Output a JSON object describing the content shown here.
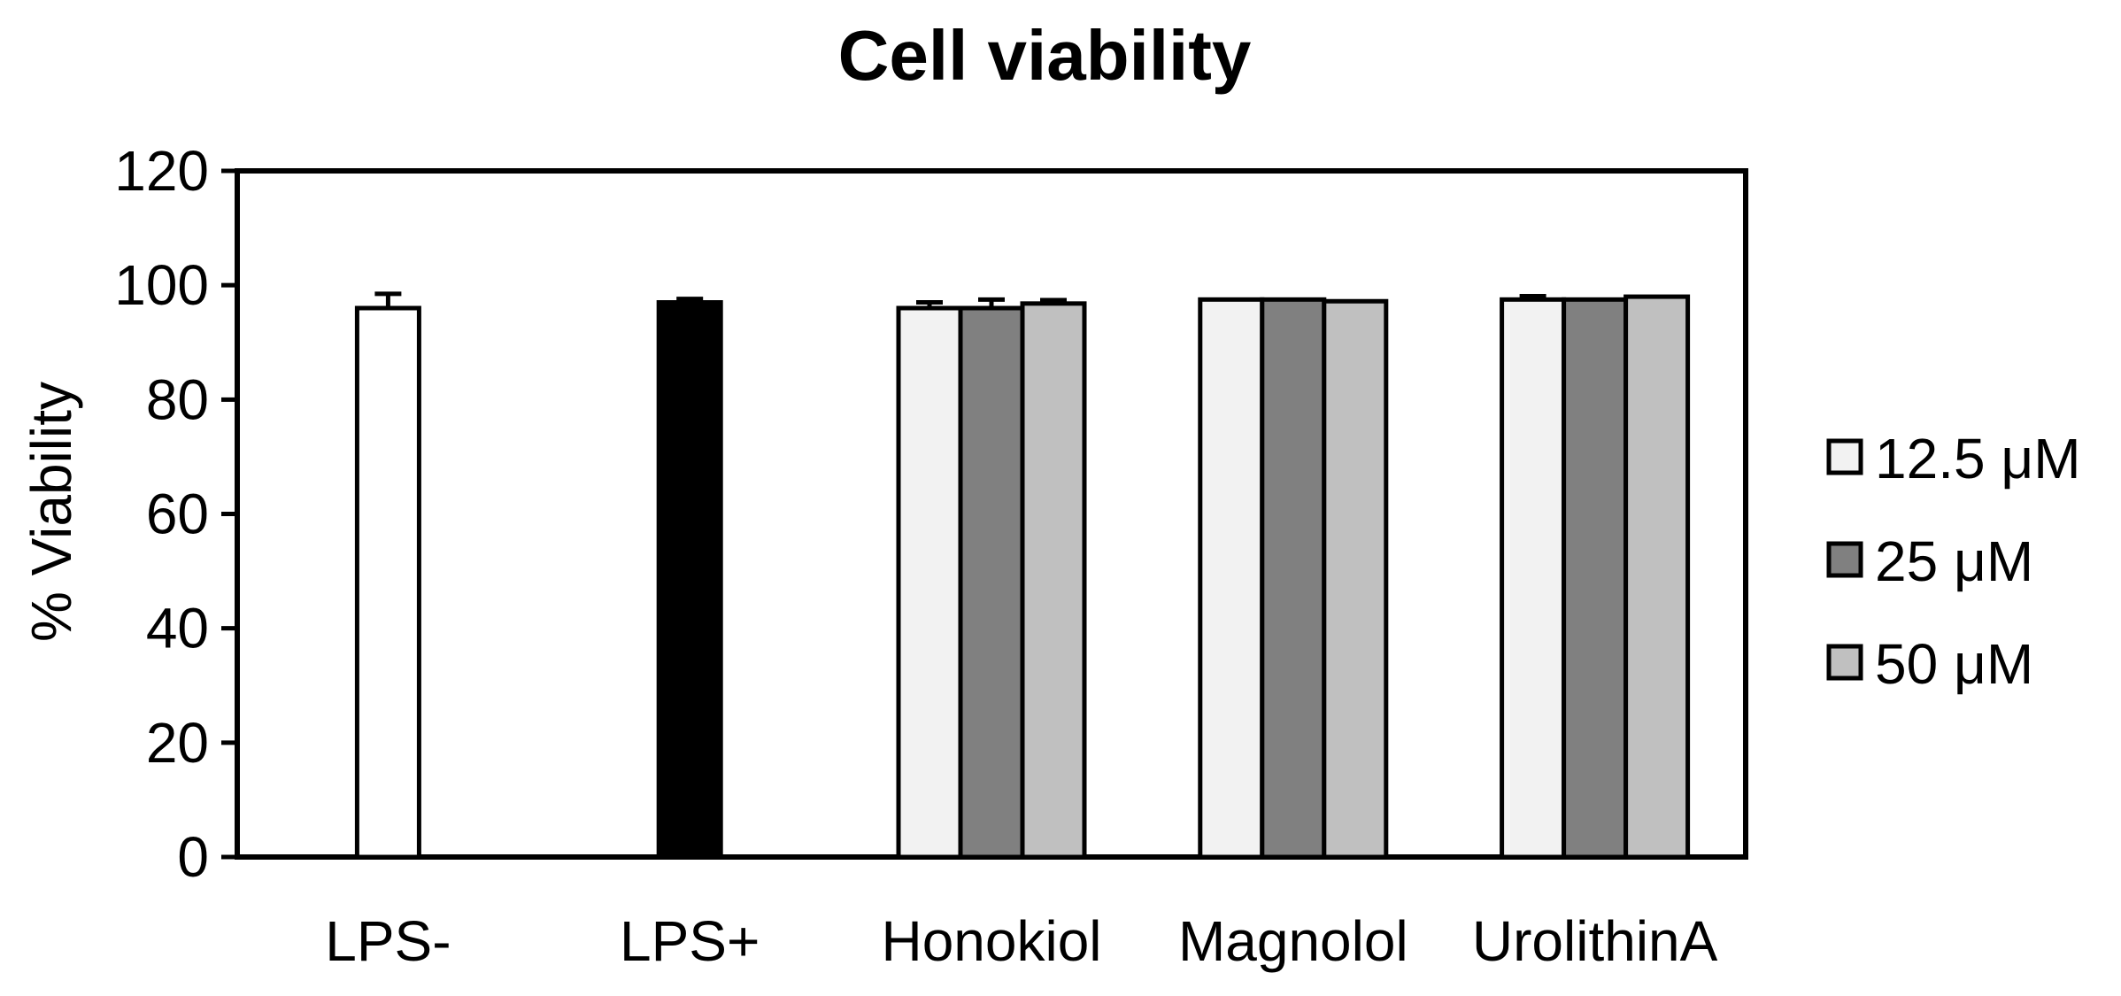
{
  "chart_data": {
    "type": "bar",
    "title": "Cell viability",
    "xlabel": "",
    "ylabel": "% Viability",
    "ylim": [
      0,
      120
    ],
    "yticks": [
      0,
      20,
      40,
      60,
      80,
      100,
      120
    ],
    "categories": [
      "LPS-",
      "LPS+",
      "Honokiol",
      "Magnolol",
      "UrolithinA"
    ],
    "controls": [
      {
        "category": "LPS-",
        "value": 96,
        "error": 2.5,
        "color": "#ffffff"
      },
      {
        "category": "LPS+",
        "value": 97,
        "error": 0.6,
        "color": "#000000"
      }
    ],
    "series": [
      {
        "name": "12.5 μM",
        "color": "#f2f2f2",
        "values": [
          null,
          null,
          96,
          97.5,
          97.5
        ],
        "errors": [
          null,
          null,
          1,
          0,
          0.6
        ]
      },
      {
        "name": "25 μM",
        "color": "#808080",
        "values": [
          null,
          null,
          96,
          97.5,
          97.5
        ],
        "errors": [
          null,
          null,
          1.5,
          0,
          0
        ]
      },
      {
        "name": "50 μM",
        "color": "#c0c0c0",
        "values": [
          null,
          null,
          96.8,
          97.2,
          98
        ],
        "errors": [
          null,
          null,
          0.6,
          0,
          0
        ]
      }
    ],
    "grid": false,
    "legend_position": "right"
  }
}
